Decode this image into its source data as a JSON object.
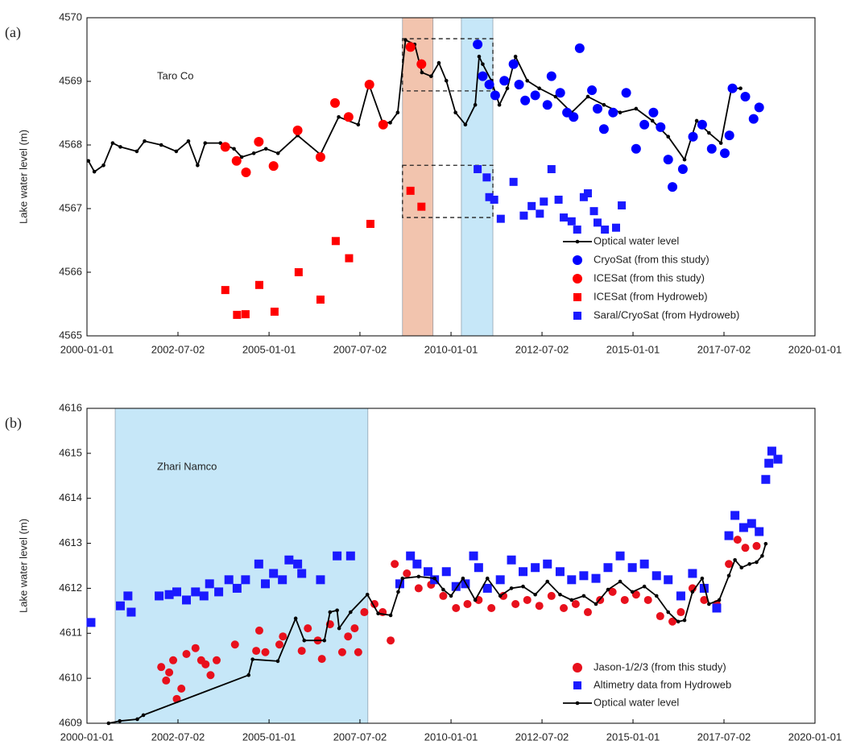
{
  "chart_data": [
    {
      "type": "line",
      "panel_label": "(a)",
      "annotation": "Taro Co",
      "ylabel": "Lake water level  (m)",
      "xlim": [
        "2000-01-01",
        "2020-01-01"
      ],
      "xticks": [
        "2000-01-01",
        "2002-07-02",
        "2005-01-01",
        "2007-07-02",
        "2010-01-01",
        "2012-07-02",
        "2015-01-01",
        "2017-07-02",
        "2020-01-01"
      ],
      "ylim": [
        4565,
        4570
      ],
      "yticks": [
        4565,
        4566,
        4567,
        4568,
        4569,
        4570
      ],
      "legend": "lower right",
      "spans": [
        {
          "xlim": [
            "2008-09-01",
            "2009-07-05"
          ],
          "color": "#f2c4ae"
        },
        {
          "xlim": [
            "2010-04-15",
            "2011-02-25"
          ],
          "color": "#c6e7f8"
        }
      ],
      "boxes": [
        {
          "xlim": [
            "2008-09-01",
            "2011-02-25"
          ],
          "ylim": [
            4568.85,
            4569.67
          ]
        },
        {
          "xlim": [
            "2008-09-01",
            "2011-02-25"
          ],
          "ylim": [
            4566.86,
            4567.68
          ]
        }
      ],
      "series": [
        {
          "name": "Optical water level",
          "color": "#000000",
          "marker": "line",
          "x": [
            "2000-01-15",
            "2000-03-15",
            "2000-06-15",
            "2000-09-15",
            "2000-12-01",
            "2001-05-15",
            "2001-08-01",
            "2002-01-15",
            "2002-06-15",
            "2002-10-15",
            "2003-01-15",
            "2003-04-01",
            "2003-09-01",
            "2004-01-15",
            "2004-04-01",
            "2004-08-01",
            "2004-12-01",
            "2005-04-01",
            "2005-10-15",
            "2006-06-01",
            "2006-12-01",
            "2007-06-15",
            "2007-10-01",
            "2008-02-15",
            "2008-05-01",
            "2008-07-15",
            "2008-10-01",
            "2009-01-01",
            "2009-03-15",
            "2009-06-15",
            "2009-09-01",
            "2009-11-15",
            "2010-02-15",
            "2010-05-25",
            "2010-09-01",
            "2010-10-10",
            "2010-11-15",
            "2011-02-10",
            "2011-05-01",
            "2011-07-20",
            "2011-10-10",
            "2012-02-05",
            "2012-06-05",
            "2012-11-15",
            "2013-04-25",
            "2013-10-05",
            "2014-03-15",
            "2014-08-25",
            "2015-02-01",
            "2015-07-15",
            "2015-12-20",
            "2016-06-01",
            "2016-10-01",
            "2017-02-01",
            "2017-06-01",
            "2017-09-15",
            "2017-12-15"
          ],
          "values": [
            4567.75,
            4567.58,
            4567.68,
            4568.03,
            4567.97,
            4567.9,
            4568.06,
            4568.0,
            4567.9,
            4568.06,
            4567.68,
            4568.03,
            4568.03,
            4567.94,
            4567.81,
            4567.87,
            4567.94,
            4567.87,
            4568.15,
            4567.85,
            4568.44,
            4568.32,
            4568.95,
            4568.35,
            4568.35,
            4568.51,
            4569.65,
            4569.58,
            4569.14,
            4569.08,
            4569.29,
            4569.01,
            4568.51,
            4568.32,
            4568.63,
            4569.39,
            4569.27,
            4569.01,
            4568.63,
            4568.89,
            4569.39,
            4569.01,
            4568.89,
            4568.76,
            4568.51,
            4568.76,
            4568.63,
            4568.51,
            4568.57,
            4568.38,
            4568.13,
            4567.77,
            4568.38,
            4568.19,
            4568.03,
            4568.89,
            4568.89
          ]
        },
        {
          "name": "CryoSat (from this study)",
          "color": "#0000ff",
          "marker": "circle",
          "x": [
            "2010-09-25",
            "2010-11-15",
            "2011-01-20",
            "2011-03-20",
            "2011-06-20",
            "2011-09-20",
            "2011-11-15",
            "2012-01-15",
            "2012-04-25",
            "2012-08-25",
            "2012-10-05",
            "2013-01-01",
            "2013-03-10",
            "2013-05-15",
            "2013-07-15",
            "2013-11-15",
            "2014-01-10",
            "2014-03-15",
            "2014-06-15",
            "2014-10-25",
            "2015-02-01",
            "2015-04-25",
            "2015-07-25",
            "2015-10-05",
            "2015-12-20",
            "2016-02-01",
            "2016-05-15",
            "2016-08-25",
            "2016-11-25",
            "2017-03-01",
            "2017-07-10",
            "2017-08-25",
            "2017-09-25",
            "2018-02-01",
            "2018-04-25",
            "2018-06-20"
          ],
          "values": [
            4569.58,
            4569.08,
            4568.95,
            4568.78,
            4569.01,
            4569.27,
            4568.95,
            4568.7,
            4568.78,
            4568.63,
            4569.08,
            4568.82,
            4568.51,
            4568.44,
            4569.52,
            4568.86,
            4568.57,
            4568.25,
            4568.51,
            4568.82,
            4567.94,
            4568.32,
            4568.51,
            4568.28,
            4567.77,
            4567.34,
            4567.62,
            4568.13,
            4568.32,
            4567.94,
            4567.87,
            4568.15,
            4568.89,
            4568.76,
            4568.41,
            4568.59
          ]
        },
        {
          "name": "ICESat (from this study)",
          "color": "#ff0000",
          "marker": "circle",
          "x": [
            "2003-10-20",
            "2004-02-10",
            "2004-05-15",
            "2004-09-20",
            "2005-02-15",
            "2005-10-15",
            "2006-06-01",
            "2006-10-25",
            "2007-03-10",
            "2007-10-05",
            "2008-02-20",
            "2008-11-20",
            "2009-03-10"
          ],
          "values": [
            4567.97,
            4567.75,
            4567.57,
            4568.05,
            4567.67,
            4568.23,
            4567.81,
            4568.66,
            4568.44,
            4568.95,
            4568.32,
            4569.54,
            4569.27
          ]
        },
        {
          "name": "ICESat (from Hydroweb)",
          "color": "#ff0000",
          "marker": "square",
          "x": [
            "2003-10-20",
            "2004-02-15",
            "2004-05-10",
            "2004-09-25",
            "2005-02-25",
            "2005-10-25",
            "2006-06-01",
            "2006-11-01",
            "2007-03-15",
            "2007-10-15",
            "2008-11-20",
            "2009-03-10"
          ],
          "values": [
            4565.72,
            4565.33,
            4565.34,
            4565.8,
            4565.38,
            4566.0,
            4565.57,
            4566.49,
            4566.22,
            4566.76,
            4567.28,
            4567.03
          ]
        },
        {
          "name": "Saral/CryoSat (from Hydroweb)",
          "color": "#1a1aff",
          "marker": "square",
          "x": [
            "2010-09-25",
            "2010-12-25",
            "2011-01-20",
            "2011-03-10",
            "2011-05-15",
            "2011-09-20",
            "2012-01-01",
            "2012-03-20",
            "2012-06-10",
            "2012-07-20",
            "2012-10-05",
            "2012-12-15",
            "2013-02-05",
            "2013-04-25",
            "2013-06-20",
            "2013-08-25",
            "2013-10-05",
            "2013-12-05",
            "2014-01-10",
            "2014-03-25",
            "2014-07-15",
            "2014-09-10"
          ],
          "values": [
            4567.62,
            4567.49,
            4567.18,
            4567.14,
            4566.84,
            4567.42,
            4566.89,
            4567.04,
            4566.92,
            4567.11,
            4567.62,
            4567.14,
            4566.86,
            4566.8,
            4566.67,
            4567.18,
            4567.24,
            4566.96,
            4566.78,
            4566.67,
            4566.7,
            4567.05
          ]
        }
      ]
    },
    {
      "type": "line",
      "panel_label": "(b)",
      "annotation": "Zhari Namco",
      "ylabel": "Lake water level  (m)",
      "xlim": [
        "2000-01-01",
        "2020-01-01"
      ],
      "xticks": [
        "2000-01-01",
        "2002-07-02",
        "2005-01-01",
        "2007-07-02",
        "2010-01-01",
        "2012-07-02",
        "2015-01-01",
        "2017-07-02",
        "2020-01-01"
      ],
      "ylim": [
        4609,
        4616
      ],
      "yticks": [
        4609,
        4610,
        4611,
        4612,
        4613,
        4614,
        4615,
        4616
      ],
      "legend": "lower right",
      "spans": [
        {
          "xlim": [
            "2000-10-10",
            "2007-09-20"
          ],
          "color": "#c6e7f8"
        }
      ],
      "boxes": [],
      "series": [
        {
          "name": "Jason-1/2/3 (from this study)",
          "color": "#e8101c",
          "marker": "circle",
          "x": [
            "2002-01-15",
            "2002-03-05",
            "2002-04-05",
            "2002-05-15",
            "2002-06-20",
            "2002-08-05",
            "2002-09-25",
            "2002-12-25",
            "2003-02-20",
            "2003-04-05",
            "2003-05-25",
            "2003-07-25",
            "2004-01-25",
            "2004-08-25",
            "2004-09-25",
            "2004-11-25",
            "2005-04-15",
            "2005-05-20",
            "2005-11-25",
            "2006-01-25",
            "2006-05-05",
            "2006-06-15",
            "2006-09-05",
            "2007-01-05",
            "2007-03-05",
            "2007-05-10",
            "2007-06-15",
            "2007-08-15",
            "2007-11-25",
            "2008-02-15",
            "2008-05-05",
            "2008-06-15",
            "2008-10-15",
            "2009-02-10",
            "2009-06-15",
            "2009-10-15",
            "2010-02-20",
            "2010-06-15",
            "2010-10-05",
            "2011-02-10",
            "2011-06-10",
            "2011-10-10",
            "2012-02-05",
            "2012-06-05",
            "2012-10-05",
            "2013-02-05",
            "2013-06-05",
            "2013-10-05",
            "2014-02-05",
            "2014-06-10",
            "2014-10-10",
            "2015-02-01",
            "2015-06-01",
            "2015-10-01",
            "2016-02-01",
            "2016-04-25",
            "2016-08-20",
            "2016-12-15",
            "2017-04-20",
            "2017-08-20",
            "2017-11-15",
            "2018-02-01",
            "2018-05-25"
          ],
          "values": [
            4610.25,
            4609.95,
            4610.13,
            4610.4,
            4609.54,
            4609.77,
            4610.54,
            4610.67,
            4610.4,
            4610.31,
            4610.07,
            4610.4,
            4610.75,
            4610.61,
            4611.06,
            4610.58,
            4610.75,
            4610.93,
            4610.61,
            4611.11,
            4610.84,
            4610.43,
            4611.2,
            4610.58,
            4610.93,
            4611.11,
            4610.58,
            4611.47,
            4611.65,
            4611.47,
            4610.84,
            4612.54,
            4612.33,
            4612.0,
            4612.08,
            4611.83,
            4611.56,
            4611.65,
            4611.74,
            4611.56,
            4611.83,
            4611.65,
            4611.74,
            4611.61,
            4611.83,
            4611.56,
            4611.65,
            4611.47,
            4611.74,
            4611.92,
            4611.74,
            4611.86,
            4611.74,
            4611.38,
            4611.26,
            4611.47,
            4612.0,
            4611.74,
            4611.65,
            4612.54,
            4613.08,
            4612.9,
            4612.94
          ]
        },
        {
          "name": "Altimetry data from Hydroweb",
          "color": "#1a1aff",
          "marker": "square",
          "x": [
            "2000-02-10",
            "2000-12-01",
            "2001-02-15",
            "2001-03-20",
            "2001-12-25",
            "2002-04-05",
            "2002-06-20",
            "2002-09-25",
            "2002-12-25",
            "2003-03-20",
            "2003-05-15",
            "2003-08-15",
            "2003-11-25",
            "2004-02-15",
            "2004-05-10",
            "2004-09-20",
            "2004-11-25",
            "2005-02-15",
            "2005-05-15",
            "2005-07-20",
            "2005-10-15",
            "2005-11-25",
            "2006-06-01",
            "2006-11-15",
            "2007-03-30",
            "2008-08-05",
            "2008-11-20",
            "2009-01-25",
            "2009-05-15",
            "2009-07-20",
            "2009-11-15",
            "2010-02-20",
            "2010-05-25",
            "2010-08-15",
            "2010-10-05",
            "2011-01-01",
            "2011-05-10",
            "2011-08-30",
            "2011-12-25",
            "2012-04-25",
            "2012-08-25",
            "2012-12-30",
            "2013-04-25",
            "2013-08-25",
            "2013-12-25",
            "2014-04-25",
            "2014-08-25",
            "2014-12-25",
            "2015-04-25",
            "2015-08-25",
            "2015-12-20",
            "2016-04-25",
            "2016-08-20",
            "2016-12-15",
            "2017-04-20",
            "2017-08-20",
            "2017-10-20",
            "2018-01-15",
            "2018-04-05",
            "2018-06-20",
            "2018-08-25",
            "2018-09-25",
            "2018-10-25",
            "2018-12-25"
          ],
          "values": [
            4611.24,
            4611.61,
            4611.83,
            4611.47,
            4611.83,
            4611.86,
            4611.92,
            4611.74,
            4611.92,
            4611.83,
            4612.1,
            4611.92,
            4612.19,
            4612.0,
            4612.19,
            4612.54,
            4612.1,
            4612.33,
            4612.19,
            4612.63,
            4612.54,
            4612.33,
            4612.19,
            4612.72,
            4612.72,
            4612.1,
            4612.72,
            4612.54,
            4612.37,
            4612.19,
            4612.37,
            4612.04,
            4612.1,
            4612.72,
            4612.46,
            4612.0,
            4612.19,
            4612.63,
            4612.37,
            4612.46,
            4612.54,
            4612.37,
            4612.19,
            4612.28,
            4612.22,
            4612.46,
            4612.72,
            4612.46,
            4612.54,
            4612.28,
            4612.19,
            4611.83,
            4612.33,
            4612.0,
            4611.56,
            4613.17,
            4613.62,
            4613.35,
            4613.44,
            4613.26,
            4614.42,
            4614.78,
            4615.05,
            4614.87
          ]
        },
        {
          "name": "Optical water level",
          "color": "#000000",
          "marker": "line",
          "x": [
            "2000-08-05",
            "2000-11-25",
            "2001-05-20",
            "2001-07-20",
            "2004-06-10",
            "2004-07-20",
            "2005-03-30",
            "2005-09-25",
            "2005-12-20",
            "2006-07-10",
            "2006-09-05",
            "2006-11-15",
            "2006-12-05",
            "2007-03-30",
            "2007-09-15",
            "2008-01-01",
            "2008-05-05",
            "2008-07-20",
            "2008-09-01",
            "2009-02-10",
            "2009-07-20",
            "2009-10-15",
            "2010-01-01",
            "2010-05-01",
            "2010-09-01",
            "2011-01-01",
            "2011-05-10",
            "2011-08-30",
            "2011-12-25",
            "2012-04-25",
            "2012-08-25",
            "2012-12-30",
            "2013-04-25",
            "2013-08-25",
            "2013-12-25",
            "2014-04-25",
            "2014-08-25",
            "2014-12-25",
            "2015-04-25",
            "2015-08-25",
            "2015-12-20",
            "2016-03-30",
            "2016-06-01",
            "2016-08-20",
            "2016-11-25",
            "2017-02-01",
            "2017-05-15",
            "2017-08-20",
            "2017-10-20",
            "2017-12-25",
            "2018-03-15",
            "2018-05-25",
            "2018-07-20",
            "2018-08-25"
          ],
          "values": [
            4609.0,
            4609.05,
            4609.09,
            4609.18,
            4610.07,
            4610.42,
            4610.38,
            4611.33,
            4610.84,
            4610.84,
            4611.47,
            4611.51,
            4611.11,
            4611.47,
            4611.86,
            4611.44,
            4611.4,
            4611.92,
            4612.22,
            4612.26,
            4612.22,
            4611.97,
            4611.83,
            4612.22,
            4611.74,
            4612.22,
            4611.83,
            4612.0,
            4612.04,
            4611.86,
            4612.15,
            4611.86,
            4611.74,
            4611.83,
            4611.65,
            4611.97,
            4612.15,
            4611.92,
            4612.04,
            4611.83,
            4611.47,
            4611.26,
            4611.29,
            4611.92,
            4612.22,
            4611.65,
            4611.74,
            4612.28,
            4612.63,
            4612.46,
            4612.54,
            4612.58,
            4612.72,
            4612.99
          ]
        }
      ]
    }
  ]
}
